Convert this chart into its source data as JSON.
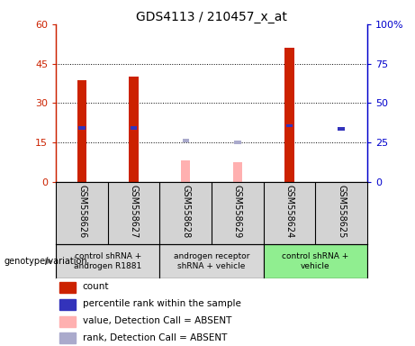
{
  "title": "GDS4113 / 210457_x_at",
  "samples": [
    "GSM558626",
    "GSM558627",
    "GSM558628",
    "GSM558629",
    "GSM558624",
    "GSM558625"
  ],
  "count_values": [
    38.5,
    40.0,
    null,
    null,
    51.0,
    null
  ],
  "count_absent_values": [
    null,
    null,
    8.0,
    7.5,
    null,
    null
  ],
  "percentile_values": [
    34.0,
    34.0,
    null,
    null,
    35.5,
    33.5
  ],
  "percentile_absent_values": [
    null,
    null,
    26.0,
    25.0,
    null,
    null
  ],
  "ylim_left": [
    0,
    60
  ],
  "ylim_right": [
    0,
    100
  ],
  "yticks_left": [
    0,
    15,
    30,
    45,
    60
  ],
  "yticks_right": [
    0,
    25,
    50,
    75,
    100
  ],
  "ytick_labels_left": [
    "0",
    "15",
    "30",
    "45",
    "60"
  ],
  "ytick_labels_right": [
    "0",
    "25",
    "50",
    "75",
    "100%"
  ],
  "groups": [
    {
      "label": "control shRNA +\nandrogen R1881",
      "samples": [
        0,
        1
      ],
      "color": "#d8d8d8"
    },
    {
      "label": "androgen receptor\nshRNA + vehicle",
      "samples": [
        2,
        3
      ],
      "color": "#d8d8d8"
    },
    {
      "label": "control shRNA +\nvehicle",
      "samples": [
        4,
        5
      ],
      "color": "#90ee90"
    }
  ],
  "bar_color_red": "#cc2200",
  "bar_color_pink": "#ffb0b0",
  "square_color_blue": "#3333bb",
  "square_color_lightblue": "#aaaacc",
  "legend_items": [
    {
      "label": "count",
      "color": "#cc2200"
    },
    {
      "label": "percentile rank within the sample",
      "color": "#3333bb"
    },
    {
      "label": "value, Detection Call = ABSENT",
      "color": "#ffb0b0"
    },
    {
      "label": "rank, Detection Call = ABSENT",
      "color": "#aaaacc"
    }
  ],
  "genotype_label": "genotype/variation",
  "background_color": "#ffffff",
  "plot_bg_color": "#ffffff",
  "sample_bg_color": "#d3d3d3"
}
